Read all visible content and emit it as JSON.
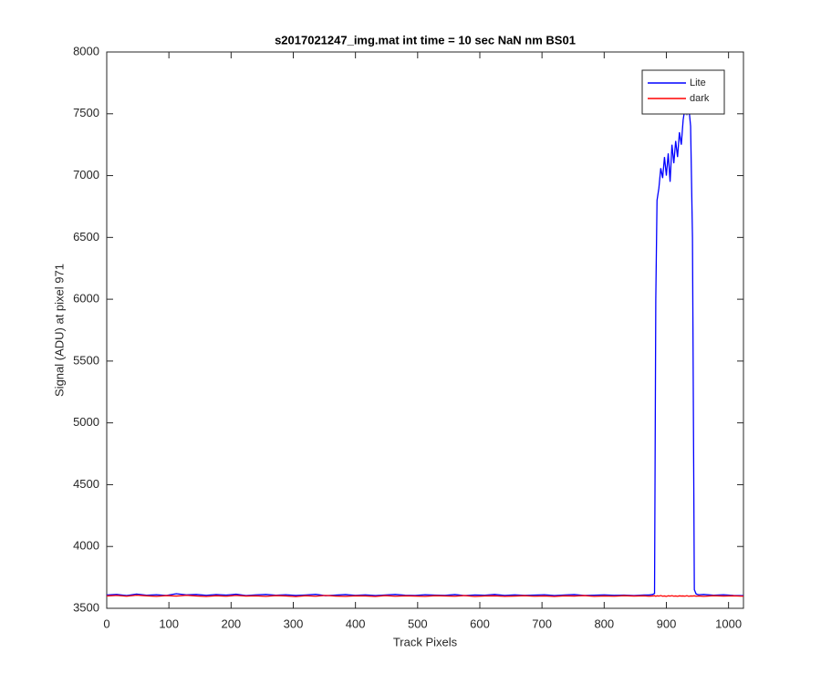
{
  "chart_data": {
    "type": "line",
    "title": "s2017021247_img.mat int time = 10 sec  NaN nm BS01",
    "x_label": "Track Pixels",
    "y_label": "Signal (ADU) at pixel 971",
    "x": [
      0,
      16,
      32,
      48,
      64,
      80,
      96,
      112,
      128,
      144,
      160,
      176,
      192,
      208,
      224,
      240,
      256,
      272,
      288,
      304,
      320,
      336,
      352,
      368,
      384,
      400,
      416,
      432,
      448,
      464,
      480,
      496,
      512,
      528,
      544,
      560,
      576,
      592,
      608,
      624,
      640,
      656,
      672,
      688,
      704,
      720,
      736,
      752,
      768,
      784,
      800,
      816,
      832,
      848,
      864,
      872,
      878,
      881,
      883,
      885,
      888,
      891,
      894,
      897,
      900,
      903,
      906,
      909,
      912,
      915,
      918,
      921,
      924,
      927,
      930,
      933,
      936,
      939,
      942,
      945,
      948,
      952,
      960,
      976,
      992,
      1008,
      1024
    ],
    "series": [
      {
        "name": "Lite",
        "color": "#0000ff",
        "values": [
          3608,
          3612,
          3603,
          3615,
          3606,
          3610,
          3604,
          3618,
          3609,
          3612,
          3605,
          3611,
          3607,
          3614,
          3603,
          3609,
          3612,
          3606,
          3610,
          3604,
          3608,
          3613,
          3602,
          3607,
          3611,
          3605,
          3609,
          3603,
          3608,
          3612,
          3606,
          3604,
          3610,
          3607,
          3605,
          3611,
          3603,
          3608,
          3606,
          3612,
          3604,
          3609,
          3605,
          3607,
          3610,
          3603,
          3608,
          3611,
          3604,
          3606,
          3609,
          3605,
          3607,
          3603,
          3608,
          3608,
          3612,
          3620,
          6000,
          6800,
          6900,
          7060,
          6980,
          7150,
          7000,
          7180,
          6950,
          7250,
          7100,
          7280,
          7150,
          7350,
          7250,
          7450,
          7550,
          7500,
          7560,
          7400,
          6500,
          3650,
          3615,
          3610,
          3612,
          3606,
          3610,
          3604,
          3602
        ]
      },
      {
        "name": "dark",
        "color": "#ff0000",
        "values": [
          3600,
          3604,
          3598,
          3606,
          3601,
          3597,
          3603,
          3599,
          3605,
          3600,
          3596,
          3602,
          3598,
          3604,
          3599,
          3601,
          3597,
          3603,
          3600,
          3595,
          3602,
          3598,
          3604,
          3599,
          3597,
          3601,
          3600,
          3596,
          3603,
          3598,
          3601,
          3599,
          3597,
          3602,
          3600,
          3598,
          3603,
          3596,
          3600,
          3601,
          3597,
          3599,
          3602,
          3598,
          3600,
          3596,
          3601,
          3599,
          3603,
          3597,
          3600,
          3598,
          3602,
          3599,
          3601,
          3598,
          3600,
          3602,
          3597,
          3601,
          3599,
          3603,
          3598,
          3600,
          3596,
          3601,
          3599,
          3602,
          3598,
          3600,
          3597,
          3601,
          3599,
          3600,
          3598,
          3602,
          3597,
          3600,
          3599,
          3601,
          3598,
          3600,
          3597,
          3602,
          3599,
          3601,
          3598
        ]
      }
    ],
    "xlim": [
      0,
      1024
    ],
    "xticks": [
      0,
      100,
      200,
      300,
      400,
      500,
      600,
      700,
      800,
      900,
      1000
    ],
    "ylim": [
      3500,
      8000
    ],
    "yticks": [
      3500,
      4000,
      4500,
      5000,
      5500,
      6000,
      6500,
      7000,
      7500,
      8000
    ],
    "legend": "northeast",
    "grid": false
  }
}
